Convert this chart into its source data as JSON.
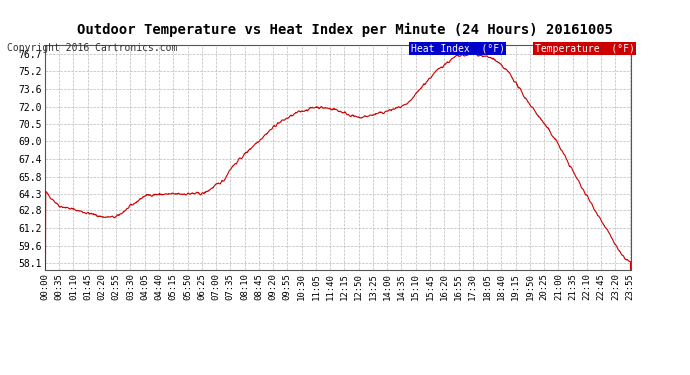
{
  "title": "Outdoor Temperature vs Heat Index per Minute (24 Hours) 20161005",
  "copyright": "Copyright 2016 Cartronics.com",
  "legend_label_heat": "Heat Index  (°F)",
  "legend_label_temp": "Temperature  (°F)",
  "legend_color_heat": "#0000cc",
  "legend_color_temp": "#cc0000",
  "line_color": "#cc0000",
  "background_color": "#ffffff",
  "grid_color": "#bbbbbb",
  "ylim": [
    57.5,
    77.5
  ],
  "yticks": [
    58.1,
    59.6,
    61.2,
    62.8,
    64.3,
    65.8,
    67.4,
    69.0,
    70.5,
    72.0,
    73.6,
    75.2,
    76.7
  ],
  "title_fontsize": 10,
  "copyright_fontsize": 7,
  "tick_fontsize": 7
}
